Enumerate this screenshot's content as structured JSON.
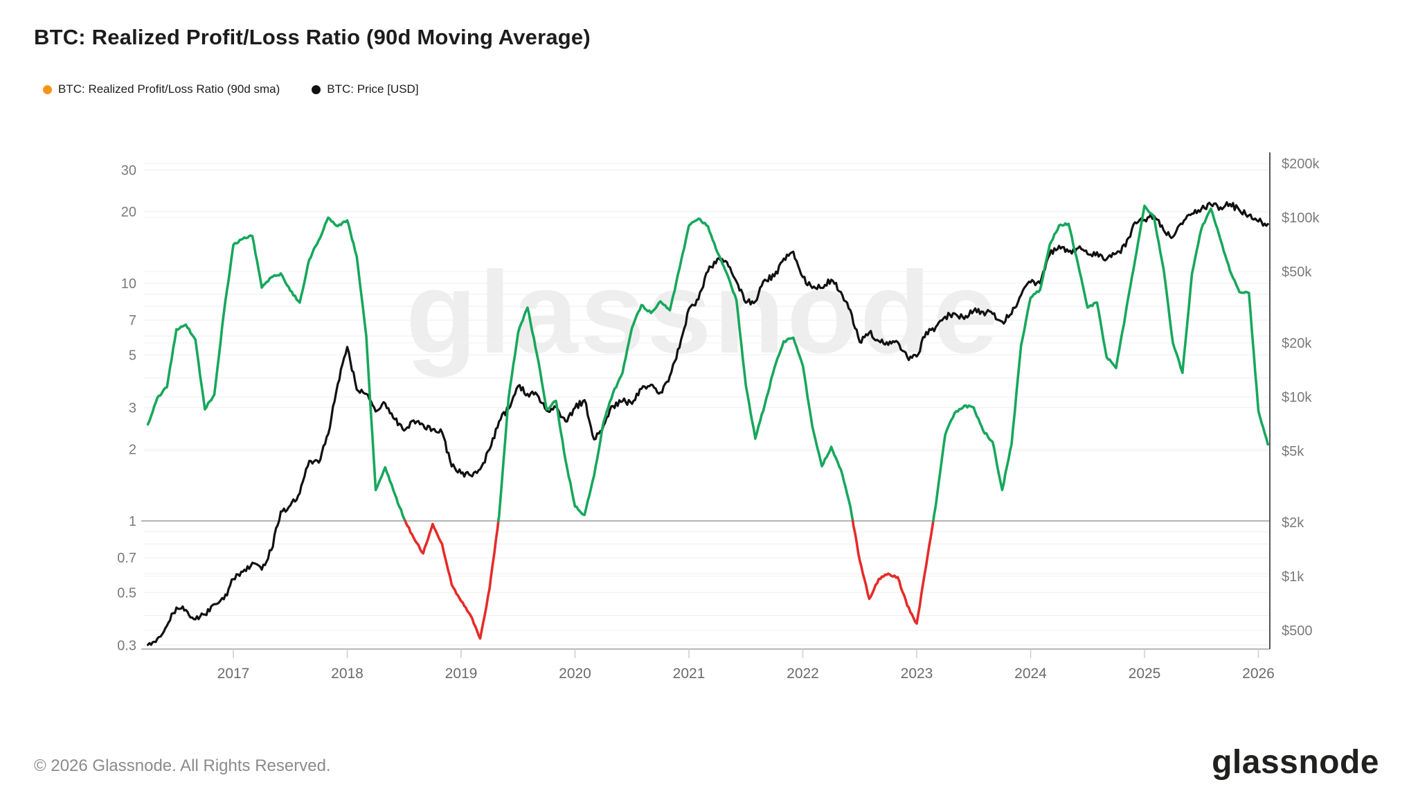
{
  "header": {
    "title": "BTC: Realized Profit/Loss Ratio (90d Moving Average)",
    "legend": [
      {
        "label": "BTC: Realized Profit/Loss Ratio (90d sma)",
        "color": "#f7931a"
      },
      {
        "label": "BTC: Price [USD]",
        "color": "#111111"
      }
    ]
  },
  "watermark": {
    "text": "glassnode"
  },
  "footer": {
    "copyright": "© 2026 Glassnode. All Rights Reserved.",
    "brand": "glassnode"
  },
  "chart_data": {
    "type": "line",
    "title": "BTC: Realized Profit/Loss Ratio (90d Moving Average)",
    "x_axis": {
      "tick_years": [
        2017,
        2018,
        2019,
        2020,
        2021,
        2022,
        2023,
        2024,
        2025,
        2026
      ],
      "range": [
        2016.17,
        2026.12
      ]
    },
    "y_left": {
      "scale": "log",
      "name": "Realized Profit/Loss Ratio (90d sma)",
      "tick_labels": [
        "30",
        "20",
        "10",
        "7",
        "5",
        "3",
        "2",
        "1",
        "0.7",
        "0.5",
        "0.3"
      ],
      "tick_values": [
        30,
        20,
        10,
        7,
        5,
        3,
        2,
        1,
        0.7,
        0.5,
        0.3
      ],
      "gridline_values": [
        30,
        20,
        10,
        9,
        8,
        7,
        6,
        5,
        4,
        3,
        2,
        0.9,
        0.8,
        0.7,
        0.6,
        0.5,
        0.4,
        0.3
      ],
      "threshold": 1,
      "range": [
        0.28,
        33
      ]
    },
    "y_right": {
      "scale": "log",
      "name": "BTC Price [USD]",
      "tick_labels": [
        "$200k",
        "$100k",
        "$50k",
        "$20k",
        "$10k",
        "$5k",
        "$2k",
        "$1k",
        "$500"
      ],
      "tick_values": [
        200000,
        100000,
        50000,
        20000,
        10000,
        5000,
        2000,
        1000,
        500
      ],
      "range": [
        400,
        230000
      ]
    },
    "x": [
      2016.25,
      2016.333,
      2016.417,
      2016.5,
      2016.583,
      2016.667,
      2016.75,
      2016.833,
      2016.917,
      2017.0,
      2017.083,
      2017.167,
      2017.25,
      2017.333,
      2017.417,
      2017.5,
      2017.583,
      2017.667,
      2017.75,
      2017.833,
      2017.917,
      2018.0,
      2018.083,
      2018.167,
      2018.25,
      2018.333,
      2018.417,
      2018.5,
      2018.583,
      2018.667,
      2018.75,
      2018.833,
      2018.917,
      2019.0,
      2019.083,
      2019.167,
      2019.25,
      2019.333,
      2019.417,
      2019.5,
      2019.583,
      2019.667,
      2019.75,
      2019.833,
      2019.917,
      2020.0,
      2020.083,
      2020.167,
      2020.25,
      2020.333,
      2020.417,
      2020.5,
      2020.583,
      2020.667,
      2020.75,
      2020.833,
      2020.917,
      2021.0,
      2021.083,
      2021.167,
      2021.25,
      2021.333,
      2021.417,
      2021.5,
      2021.583,
      2021.667,
      2021.75,
      2021.833,
      2021.917,
      2022.0,
      2022.083,
      2022.167,
      2022.25,
      2022.333,
      2022.417,
      2022.5,
      2022.583,
      2022.667,
      2022.75,
      2022.833,
      2022.917,
      2023.0,
      2023.083,
      2023.167,
      2023.25,
      2023.333,
      2023.417,
      2023.5,
      2023.583,
      2023.667,
      2023.75,
      2023.833,
      2023.917,
      2024.0,
      2024.083,
      2024.167,
      2024.25,
      2024.333,
      2024.417,
      2024.5,
      2024.583,
      2024.667,
      2024.75,
      2024.833,
      2024.917,
      2025.0,
      2025.083,
      2025.167,
      2025.25,
      2025.333,
      2025.417,
      2025.5,
      2025.583,
      2025.667,
      2025.75,
      2025.833,
      2025.917,
      2026.0,
      2026.083
    ],
    "series": [
      {
        "name": "BTC: Realized Profit/Loss Ratio (90d sma)",
        "axis": "left",
        "color_above_threshold": "#17a75c",
        "color_below_threshold": "#e52b28",
        "values": [
          2.55,
          3.3,
          3.65,
          6.4,
          6.7,
          5.8,
          2.95,
          3.4,
          7.5,
          14.5,
          15.4,
          15.8,
          9.6,
          10.6,
          11.0,
          9.3,
          8.3,
          12.6,
          15.2,
          18.9,
          17.4,
          18.4,
          13.0,
          6.0,
          1.35,
          1.68,
          1.3,
          1.02,
          0.85,
          0.73,
          0.97,
          0.8,
          0.54,
          0.46,
          0.4,
          0.32,
          0.52,
          1.05,
          3.3,
          6.2,
          7.9,
          5.0,
          2.95,
          3.2,
          1.8,
          1.15,
          1.06,
          1.55,
          2.6,
          3.45,
          4.2,
          6.5,
          8.1,
          7.5,
          8.4,
          7.7,
          11.5,
          17.5,
          18.7,
          17.4,
          13.5,
          11.0,
          8.5,
          3.7,
          2.22,
          3.1,
          4.4,
          5.7,
          5.9,
          4.5,
          2.5,
          1.7,
          2.05,
          1.65,
          1.15,
          0.68,
          0.47,
          0.57,
          0.6,
          0.58,
          0.44,
          0.37,
          0.65,
          1.16,
          2.3,
          2.85,
          3.05,
          3.0,
          2.4,
          2.15,
          1.35,
          2.1,
          5.5,
          8.7,
          9.4,
          14.5,
          17.5,
          17.8,
          12.0,
          7.9,
          8.3,
          4.9,
          4.4,
          7.4,
          12.5,
          21.2,
          19.0,
          11.5,
          5.6,
          4.2,
          11.0,
          17.0,
          20.6,
          15.3,
          11.3,
          9.2,
          9.1,
          2.9,
          2.1
        ]
      },
      {
        "name": "BTC: Price [USD]",
        "axis": "right",
        "color": "#111111",
        "values": [
          415,
          450,
          530,
          670,
          650,
          575,
          612,
          700,
          745,
          965,
          1060,
          1190,
          1090,
          1400,
          2300,
          2480,
          2900,
          4400,
          4300,
          6200,
          11800,
          19000,
          11000,
          10400,
          8300,
          9200,
          7500,
          6500,
          7400,
          7000,
          6600,
          6350,
          4100,
          3750,
          3650,
          3950,
          5100,
          7300,
          8600,
          11500,
          10400,
          10300,
          8400,
          8800,
          7300,
          8700,
          9600,
          5800,
          6900,
          8900,
          9450,
          9150,
          11100,
          11700,
          10600,
          13100,
          18800,
          31000,
          35000,
          50000,
          58800,
          56500,
          44000,
          33500,
          34000,
          45000,
          47000,
          59000,
          64500,
          46500,
          40500,
          40500,
          45000,
          38500,
          30500,
          20200,
          22800,
          20500,
          19500,
          20200,
          16700,
          16800,
          23000,
          24500,
          28000,
          29200,
          27200,
          30200,
          29800,
          29000,
          26300,
          29000,
          37000,
          43500,
          43000,
          62000,
          69500,
          64500,
          67500,
          62500,
          64000,
          58500,
          63000,
          69000,
          94000,
          97000,
          102000,
          85000,
          78000,
          92000,
          105000,
          112000,
          118000,
          114000,
          119000,
          110000,
          103000,
          95000,
          92000
        ]
      }
    ],
    "legend_position": "top-left",
    "grid": "horizontal-only"
  }
}
